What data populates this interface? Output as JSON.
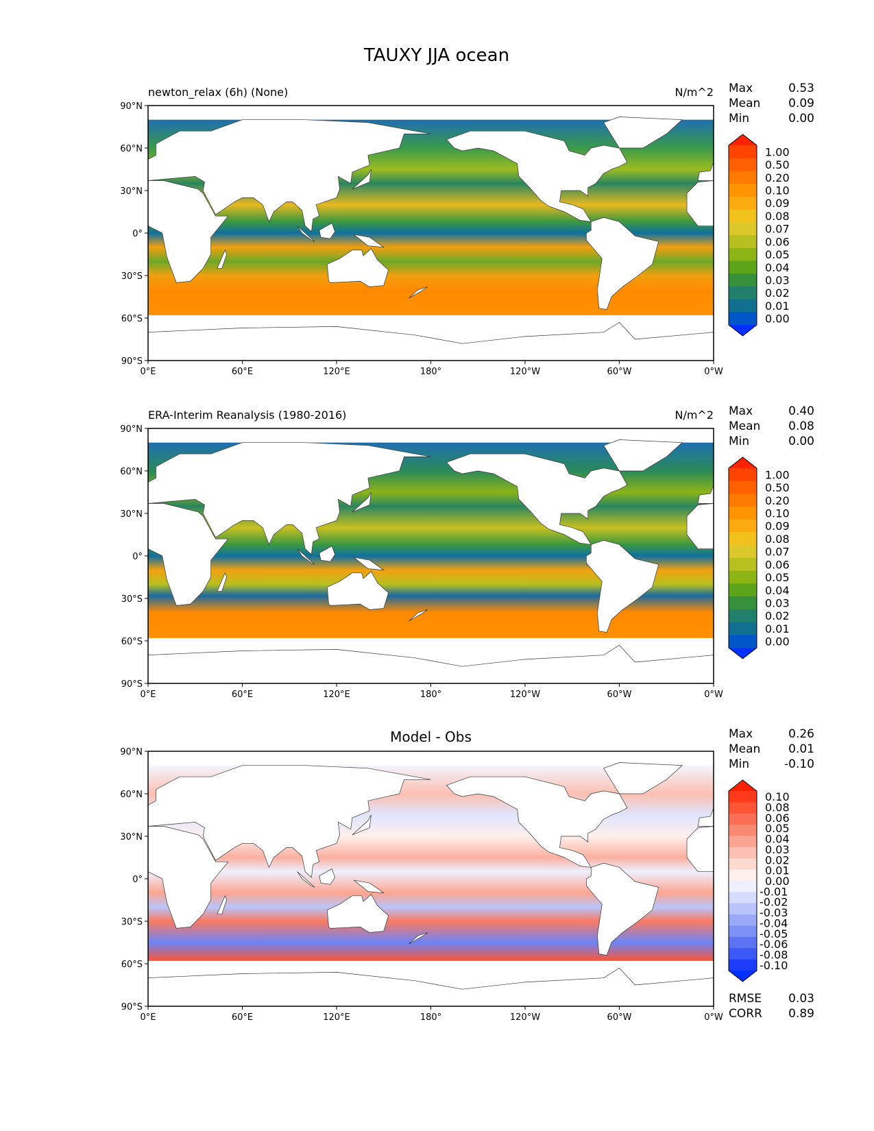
{
  "chart_data": {
    "type": "heatmap",
    "title": "TAUXY JJA ocean",
    "x_ticks": [
      "0°E",
      "60°E",
      "120°E",
      "180°",
      "120°W",
      "60°W",
      "0°W"
    ],
    "y_ticks": [
      "90°N",
      "60°N",
      "30°N",
      "0°",
      "30°S",
      "60°S",
      "90°S"
    ],
    "xlim": [
      0,
      360
    ],
    "ylim": [
      -90,
      90
    ],
    "panels": [
      {
        "name": "model",
        "left_title": "newton_relax (6h) (None)",
        "right_title": "N/m^2",
        "center_title": "",
        "stats": [
          {
            "label": "Max",
            "value": "0.53"
          },
          {
            "label": "Mean",
            "value": "0.09"
          },
          {
            "label": "Min",
            "value": "0.00"
          }
        ],
        "colorbar_levels": [
          "1.00",
          "0.50",
          "0.20",
          "0.10",
          "0.09",
          "0.08",
          "0.07",
          "0.06",
          "0.05",
          "0.04",
          "0.03",
          "0.02",
          "0.01",
          "0.00"
        ],
        "colorbar_colors": [
          "#ff2200",
          "#ff4400",
          "#ff6000",
          "#ff7a00",
          "#ff9400",
          "#fbaa10",
          "#f2c21c",
          "#dcc82a",
          "#b8c020",
          "#8cb414",
          "#5ea41a",
          "#37903a",
          "#22806a",
          "#117090",
          "#0058c8",
          "#0030ff"
        ]
      },
      {
        "name": "obs",
        "left_title": "ERA-Interim Reanalysis (1980-2016)",
        "right_title": "N/m^2",
        "center_title": "",
        "stats": [
          {
            "label": "Max",
            "value": "0.40"
          },
          {
            "label": "Mean",
            "value": "0.08"
          },
          {
            "label": "Min",
            "value": "0.00"
          }
        ],
        "colorbar_levels": [
          "1.00",
          "0.50",
          "0.20",
          "0.10",
          "0.09",
          "0.08",
          "0.07",
          "0.06",
          "0.05",
          "0.04",
          "0.03",
          "0.02",
          "0.01",
          "0.00"
        ],
        "colorbar_colors": [
          "#ff2200",
          "#ff4400",
          "#ff6000",
          "#ff7a00",
          "#ff9400",
          "#fbaa10",
          "#f2c21c",
          "#dcc82a",
          "#b8c020",
          "#8cb414",
          "#5ea41a",
          "#37903a",
          "#22806a",
          "#117090",
          "#0058c8",
          "#0030ff"
        ]
      },
      {
        "name": "diff",
        "left_title": "",
        "right_title": "",
        "center_title": "Model - Obs",
        "stats": [
          {
            "label": "Max",
            "value": "0.26"
          },
          {
            "label": "Mean",
            "value": "0.01"
          },
          {
            "label": "Min",
            "value": "-0.10"
          }
        ],
        "extra_stats": [
          {
            "label": "RMSE",
            "value": "0.03"
          },
          {
            "label": "CORR",
            "value": "0.89"
          }
        ],
        "colorbar_levels": [
          "0.10",
          "0.08",
          "0.06",
          "0.05",
          "0.04",
          "0.03",
          "0.02",
          "0.01",
          "0.00",
          "-0.01",
          "-0.02",
          "-0.03",
          "-0.04",
          "-0.05",
          "-0.06",
          "-0.08",
          "-0.10"
        ],
        "colorbar_colors": [
          "#ff2200",
          "#ff3a1a",
          "#fa5535",
          "#f86f55",
          "#f88a72",
          "#faa592",
          "#fcc0b2",
          "#fddad0",
          "#fff0ec",
          "#eef0ff",
          "#d5dcfc",
          "#b8c4fa",
          "#9aaaf8",
          "#7c90f6",
          "#5c74f4",
          "#3c58f6",
          "#1c3cfa",
          "#0030ff"
        ]
      }
    ]
  }
}
